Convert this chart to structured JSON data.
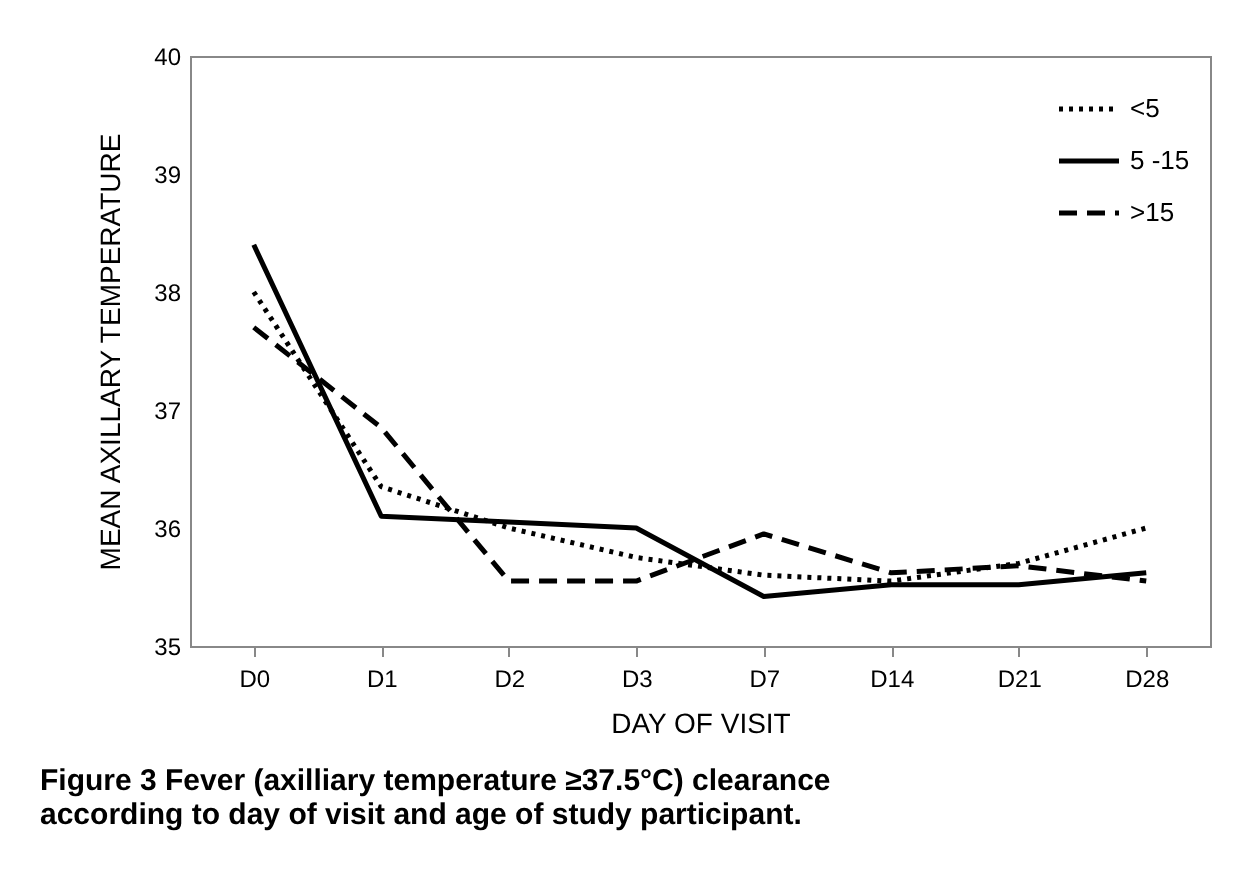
{
  "chart_data": {
    "type": "line",
    "title": "Figure 3 Fever (axilliary temperature ≥37.5°C) clearance according to day of visit and age of study participant.",
    "xlabel": "DAY OF VISIT",
    "ylabel": "MEAN AXILLARY TEMPERATURE",
    "categories": [
      "D0",
      "D1",
      "D2",
      "D3",
      "D7",
      "D14",
      "D21",
      "D28"
    ],
    "ylim": [
      35,
      40
    ],
    "yticks": [
      35,
      36,
      37,
      38,
      39,
      40
    ],
    "grid": false,
    "legend": "top right",
    "marker": "none",
    "series": [
      {
        "name": "<5",
        "color": "#000000",
        "line_style": "dotted",
        "values": [
          38.0,
          36.35,
          36.0,
          35.75,
          35.6,
          35.55,
          35.7,
          36.0
        ]
      },
      {
        "name": "5 -15",
        "color": "#000000",
        "line_style": "solid",
        "values": [
          38.4,
          36.1,
          36.05,
          36.0,
          35.42,
          35.52,
          35.52,
          35.62
        ]
      },
      {
        "name": ">15",
        "color": "#000000",
        "line_style": "dashed",
        "values": [
          37.7,
          36.85,
          35.55,
          35.55,
          35.95,
          35.62,
          35.68,
          35.55
        ]
      }
    ]
  }
}
